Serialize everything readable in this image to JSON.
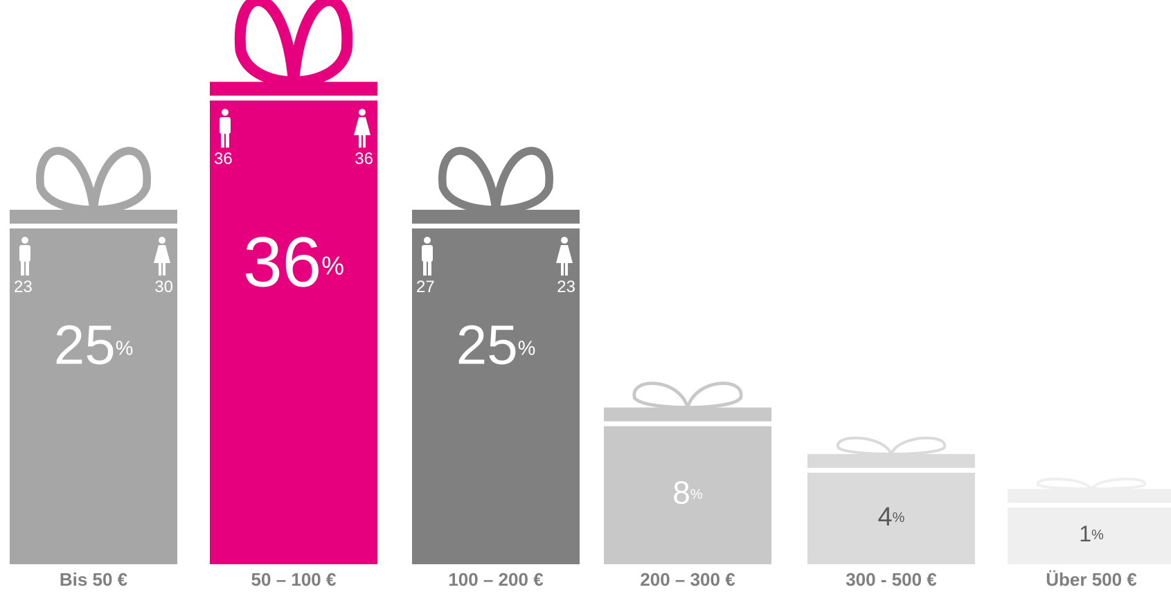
{
  "chart_data": {
    "type": "gift-bar",
    "categories": [
      "Bis 50 €",
      "50 – 100 €",
      "100 – 200 €",
      "200 – 300 €",
      "300 - 500 €",
      "Über 500 €"
    ],
    "values": [
      25,
      36,
      25,
      8,
      4,
      1
    ],
    "unit": "%",
    "colors": [
      "#a6a6a6",
      "#e6007e",
      "#808080",
      "#c8c8c8",
      "#dadada",
      "#efefef"
    ],
    "label_colors": [
      "#ffffff",
      "#ffffff",
      "#ffffff",
      "#ffffff",
      "#595959",
      "#595959"
    ],
    "series": [
      {
        "color": "#ffffff",
        "values": [
          23,
          36,
          27,
          null,
          null,
          null
        ]
      },
      {
        "color": "#ffffff",
        "values": [
          30,
          36,
          23,
          null,
          null,
          null
        ]
      }
    ]
  }
}
